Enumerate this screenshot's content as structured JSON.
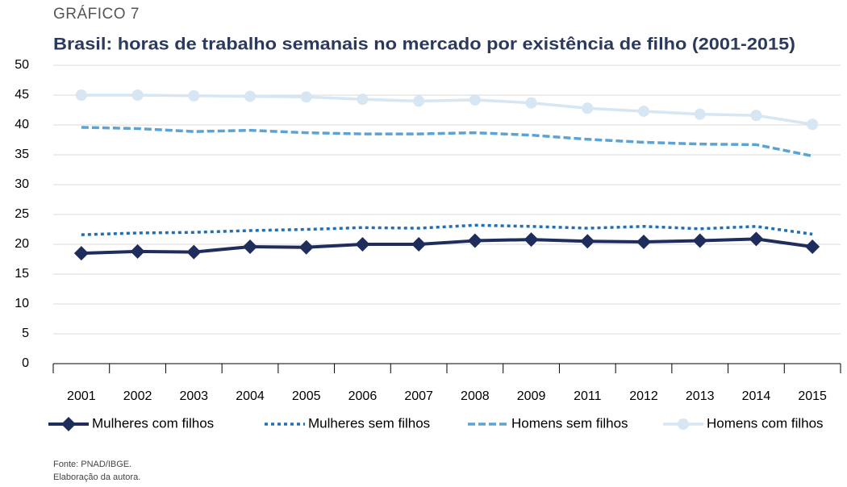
{
  "header": {
    "label": "GRÁFICO 7"
  },
  "chart_data": {
    "type": "line",
    "title": "Brasil: horas de trabalho semanais no mercado por existência de filho (2001-2015)",
    "categories": [
      "2001",
      "2002",
      "2003",
      "2004",
      "2005",
      "2006",
      "2007",
      "2008",
      "2009",
      "2011",
      "2012",
      "2013",
      "2014",
      "2015"
    ],
    "series": [
      {
        "name": "Mulheres com filhos",
        "color": "#1f2d5c",
        "line_style": "solid",
        "marker": "diamond",
        "values": [
          18.5,
          18.8,
          18.7,
          19.6,
          19.5,
          20.0,
          20.0,
          20.6,
          20.8,
          20.5,
          20.4,
          20.6,
          20.9,
          19.6
        ]
      },
      {
        "name": "Mulheres sem filhos",
        "color": "#1f6fb4",
        "line_style": "dotted",
        "marker": "none",
        "values": [
          21.6,
          21.9,
          22.0,
          22.3,
          22.5,
          22.8,
          22.7,
          23.2,
          23.0,
          22.7,
          23.0,
          22.6,
          23.0,
          21.7
        ]
      },
      {
        "name": "Homens sem filhos",
        "color": "#5ba3d4",
        "line_style": "dashed",
        "marker": "none",
        "values": [
          39.6,
          39.4,
          38.9,
          39.1,
          38.7,
          38.5,
          38.5,
          38.7,
          38.3,
          37.6,
          37.1,
          36.8,
          36.7,
          34.8
        ]
      },
      {
        "name": "Homens com filhos",
        "color": "#d6e6f2",
        "line_style": "solid",
        "marker": "circle",
        "values": [
          45.0,
          45.0,
          44.9,
          44.8,
          44.7,
          44.3,
          44.0,
          44.2,
          43.7,
          42.8,
          42.3,
          41.8,
          41.6,
          40.1
        ]
      }
    ],
    "ylim": [
      0,
      50
    ],
    "yticks": [
      0,
      5,
      10,
      15,
      20,
      25,
      30,
      35,
      40,
      45,
      50
    ],
    "grid": true,
    "legend": "bottom"
  },
  "footer": {
    "source": "Fonte: PNAD/IBGE.",
    "note": "Elaboração da autora."
  }
}
